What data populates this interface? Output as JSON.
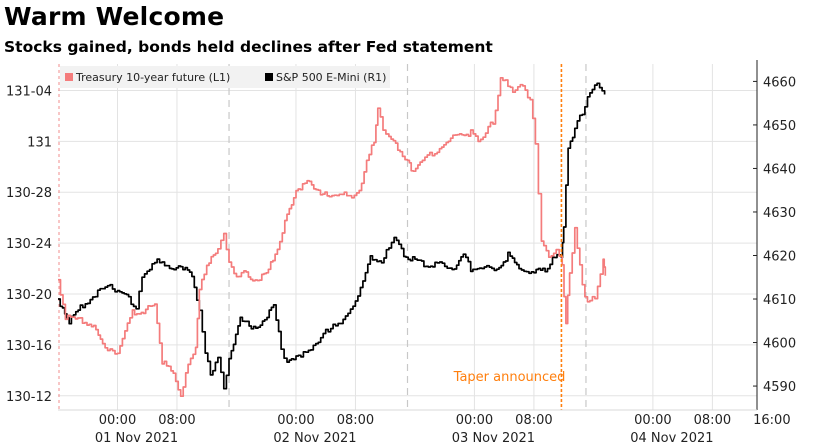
{
  "header": {
    "title": "Warm Welcome",
    "subtitle": "Stocks gained, bonds held declines after Fed statement"
  },
  "chart_data": {
    "type": "line",
    "title": "Warm Welcome",
    "subtitle": "Stocks gained, bonds held declines after Fed statement",
    "x_unit": "hours since 00:00 01 Nov 2021 (local)",
    "xlim": [
      -8,
      86
    ],
    "x_ticks": [
      {
        "x": 0,
        "time": "00:00",
        "day": "01 Nov 2021"
      },
      {
        "x": 8,
        "time": "08:00",
        "day": ""
      },
      {
        "x": 24,
        "time": "00:00",
        "day": "02 Nov 2021"
      },
      {
        "x": 32,
        "time": "08:00",
        "day": ""
      },
      {
        "x": 48,
        "time": "00:00",
        "day": "03 Nov 2021"
      },
      {
        "x": 56,
        "time": "08:00",
        "day": ""
      },
      {
        "x": 72,
        "time": "00:00",
        "day": "04 Nov 2021"
      },
      {
        "x": 80,
        "time": "08:00",
        "day": ""
      },
      {
        "x": 88,
        "time": "16:00",
        "day": ""
      }
    ],
    "session_breaks": [
      15,
      39,
      63
    ],
    "left_axis": {
      "label": "Treasury 10-year future (L1)",
      "ylim": [
        130.34,
        131.19
      ],
      "ticks": [
        {
          "v": 130.375,
          "label": "130-12"
        },
        {
          "v": 130.5,
          "label": "130-16"
        },
        {
          "v": 130.625,
          "label": "130-20"
        },
        {
          "v": 130.75,
          "label": "130-24"
        },
        {
          "v": 130.875,
          "label": "130-28"
        },
        {
          "v": 131.0,
          "label": "131"
        },
        {
          "v": 131.125,
          "label": "131-04"
        }
      ]
    },
    "right_axis": {
      "label": "S&P 500 E-Mini (R1)",
      "ylim": [
        4584.5,
        4664
      ],
      "ticks": [
        4590,
        4600,
        4610,
        4620,
        4630,
        4640,
        4650,
        4660
      ]
    },
    "series": [
      {
        "name": "S&P 500 E-Mini (R1)",
        "axis": "right",
        "color": "#000000",
        "points": [
          [
            -8,
            4610
          ],
          [
            -6.5,
            4605
          ],
          [
            -5,
            4608
          ],
          [
            -3,
            4611
          ],
          [
            -1,
            4613
          ],
          [
            0,
            4612
          ],
          [
            1.5,
            4610
          ],
          [
            2.5,
            4608
          ],
          [
            3.3,
            4615
          ],
          [
            5,
            4619
          ],
          [
            7,
            4617
          ],
          [
            8.5,
            4618
          ],
          [
            10,
            4615
          ],
          [
            11,
            4608
          ],
          [
            11.8,
            4597
          ],
          [
            12.5,
            4593
          ],
          [
            13.5,
            4596
          ],
          [
            14.3,
            4590
          ],
          [
            15,
            4596
          ],
          [
            16.5,
            4606
          ],
          [
            18,
            4603
          ],
          [
            19.5,
            4605
          ],
          [
            21,
            4608
          ],
          [
            22,
            4599
          ],
          [
            22.8,
            4595
          ],
          [
            24,
            4597
          ],
          [
            26,
            4598
          ],
          [
            28,
            4603
          ],
          [
            30,
            4604
          ],
          [
            32,
            4610
          ],
          [
            33,
            4614
          ],
          [
            34,
            4620
          ],
          [
            35.5,
            4618
          ],
          [
            36.5,
            4622
          ],
          [
            37.2,
            4624
          ],
          [
            38.5,
            4620
          ],
          [
            40,
            4619
          ],
          [
            41.5,
            4618
          ],
          [
            43,
            4618
          ],
          [
            45,
            4617
          ],
          [
            46.5,
            4620
          ],
          [
            47.5,
            4617
          ],
          [
            49,
            4617
          ],
          [
            51,
            4617
          ],
          [
            52.5,
            4620
          ],
          [
            54,
            4617
          ],
          [
            56,
            4616
          ],
          [
            57.5,
            4617
          ],
          [
            58.5,
            4619
          ],
          [
            59.7,
            4620
          ],
          [
            60,
            4626
          ],
          [
            60.6,
            4645
          ],
          [
            61.5,
            4649
          ],
          [
            62.5,
            4653
          ],
          [
            63.2,
            4656
          ],
          [
            64.5,
            4660
          ],
          [
            65.5,
            4657
          ]
        ]
      },
      {
        "name": "Treasury 10-year future (L1)",
        "axis": "left",
        "color": "#f47c7c",
        "points": [
          [
            -8,
            130.66
          ],
          [
            -7,
            130.57
          ],
          [
            -5,
            130.56
          ],
          [
            -3.5,
            130.55
          ],
          [
            -2,
            130.5
          ],
          [
            0,
            130.48
          ],
          [
            2,
            130.58
          ],
          [
            3.5,
            130.58
          ],
          [
            5,
            130.6
          ],
          [
            6,
            130.46
          ],
          [
            7.5,
            130.43
          ],
          [
            8.5,
            130.38
          ],
          [
            9.5,
            130.45
          ],
          [
            10.5,
            130.5
          ],
          [
            11,
            130.63
          ],
          [
            12,
            130.7
          ],
          [
            13.5,
            130.73
          ],
          [
            14.3,
            130.78
          ],
          [
            15,
            130.7
          ],
          [
            16,
            130.67
          ],
          [
            17,
            130.68
          ],
          [
            18.5,
            130.66
          ],
          [
            20,
            130.67
          ],
          [
            21.5,
            130.74
          ],
          [
            22.5,
            130.8
          ],
          [
            24,
            130.88
          ],
          [
            25.5,
            130.9
          ],
          [
            27,
            130.88
          ],
          [
            28.5,
            130.86
          ],
          [
            30.5,
            130.88
          ],
          [
            31.5,
            130.86
          ],
          [
            32.5,
            130.88
          ],
          [
            33.5,
            130.95
          ],
          [
            34.5,
            131.0
          ],
          [
            35,
            131.08
          ],
          [
            35.7,
            131.03
          ],
          [
            36.5,
            131.01
          ],
          [
            38,
            130.98
          ],
          [
            39,
            130.95
          ],
          [
            39.5,
            130.93
          ],
          [
            41,
            130.95
          ],
          [
            43,
            130.98
          ],
          [
            44.5,
            131.0
          ],
          [
            46,
            131.02
          ],
          [
            47.5,
            131.02
          ],
          [
            48.5,
            131.0
          ],
          [
            49.5,
            131.02
          ],
          [
            50.5,
            131.05
          ],
          [
            51.5,
            131.15
          ],
          [
            52.5,
            131.14
          ],
          [
            53.5,
            131.12
          ],
          [
            54.5,
            131.14
          ],
          [
            55.5,
            131.1
          ],
          [
            56.2,
            131.0
          ],
          [
            57,
            130.75
          ],
          [
            58,
            130.72
          ],
          [
            59,
            130.73
          ],
          [
            59.8,
            130.7
          ],
          [
            60.3,
            130.55
          ],
          [
            60.8,
            130.68
          ],
          [
            61.5,
            130.78
          ],
          [
            62.5,
            130.65
          ],
          [
            63.2,
            130.6
          ],
          [
            64.2,
            130.62
          ],
          [
            65.3,
            130.71
          ],
          [
            65.6,
            130.67
          ]
        ]
      }
    ],
    "annotations": [
      {
        "label": "Taper announced",
        "x": 59.7,
        "color": "#ff7f0e"
      }
    ],
    "legend_position": "top-left"
  }
}
